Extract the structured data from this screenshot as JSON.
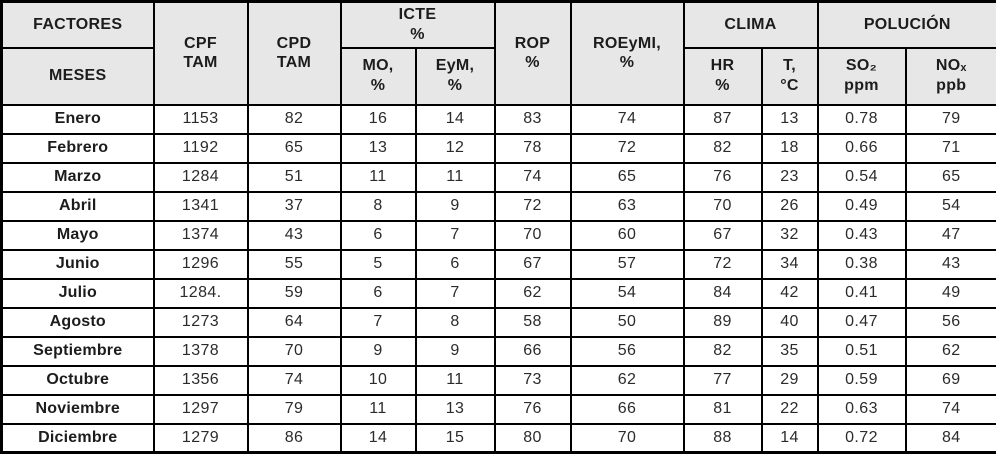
{
  "table": {
    "header": {
      "factores_label": "FACTORES",
      "meses_label": "MESES",
      "cpf_tam": "CPF\nTAM",
      "cpd_tam": "CPD\nTAM",
      "icte_group": "ICTE\n%",
      "icte_mo": "MO,\n%",
      "icte_eym": "EyM,\n%",
      "rop": "ROP\n%",
      "roeymi": "ROEyMI,\n%",
      "clima_group": "CLIMA",
      "clima_hr": "HR\n%",
      "clima_t": "T,\n°C",
      "polucion_group": "POLUCIÓN",
      "so2": "SO₂\nppm",
      "nox": "NOₓ\nppb"
    },
    "row_keys": [
      "mes",
      "cpf_tam",
      "cpd_tam",
      "icte_mo",
      "icte_eym",
      "rop",
      "roeymi",
      "clima_hr",
      "clima_t",
      "so2",
      "nox"
    ],
    "rows": [
      {
        "mes": "Enero",
        "cpf_tam": "1153",
        "cpd_tam": "82",
        "icte_mo": "16",
        "icte_eym": "14",
        "rop": "83",
        "roeymi": "74",
        "clima_hr": "87",
        "clima_t": "13",
        "so2": "0.78",
        "nox": "79"
      },
      {
        "mes": "Febrero",
        "cpf_tam": "1192",
        "cpd_tam": "65",
        "icte_mo": "13",
        "icte_eym": "12",
        "rop": "78",
        "roeymi": "72",
        "clima_hr": "82",
        "clima_t": "18",
        "so2": "0.66",
        "nox": "71"
      },
      {
        "mes": "Marzo",
        "cpf_tam": "1284",
        "cpd_tam": "51",
        "icte_mo": "11",
        "icte_eym": "11",
        "rop": "74",
        "roeymi": "65",
        "clima_hr": "76",
        "clima_t": "23",
        "so2": "0.54",
        "nox": "65"
      },
      {
        "mes": "Abril",
        "cpf_tam": "1341",
        "cpd_tam": "37",
        "icte_mo": "8",
        "icte_eym": "9",
        "rop": "72",
        "roeymi": "63",
        "clima_hr": "70",
        "clima_t": "26",
        "so2": "0.49",
        "nox": "54"
      },
      {
        "mes": "Mayo",
        "cpf_tam": "1374",
        "cpd_tam": "43",
        "icte_mo": "6",
        "icte_eym": "7",
        "rop": "70",
        "roeymi": "60",
        "clima_hr": "67",
        "clima_t": "32",
        "so2": "0.43",
        "nox": "47"
      },
      {
        "mes": "Junio",
        "cpf_tam": "1296",
        "cpd_tam": "55",
        "icte_mo": "5",
        "icte_eym": "6",
        "rop": "67",
        "roeymi": "57",
        "clima_hr": "72",
        "clima_t": "34",
        "so2": "0.38",
        "nox": "43"
      },
      {
        "mes": "Julio",
        "cpf_tam": "1284.",
        "cpd_tam": "59",
        "icte_mo": "6",
        "icte_eym": "7",
        "rop": "62",
        "roeymi": "54",
        "clima_hr": "84",
        "clima_t": "42",
        "so2": "0.41",
        "nox": "49"
      },
      {
        "mes": "Agosto",
        "cpf_tam": "1273",
        "cpd_tam": "64",
        "icte_mo": "7",
        "icte_eym": "8",
        "rop": "58",
        "roeymi": "50",
        "clima_hr": "89",
        "clima_t": "40",
        "so2": "0.47",
        "nox": "56"
      },
      {
        "mes": "Septiembre",
        "cpf_tam": "1378",
        "cpd_tam": "70",
        "icte_mo": "9",
        "icte_eym": "9",
        "rop": "66",
        "roeymi": "56",
        "clima_hr": "82",
        "clima_t": "35",
        "so2": "0.51",
        "nox": "62"
      },
      {
        "mes": "Octubre",
        "cpf_tam": "1356",
        "cpd_tam": "74",
        "icte_mo": "10",
        "icte_eym": "11",
        "rop": "73",
        "roeymi": "62",
        "clima_hr": "77",
        "clima_t": "29",
        "so2": "0.59",
        "nox": "69"
      },
      {
        "mes": "Noviembre",
        "cpf_tam": "1297",
        "cpd_tam": "79",
        "icte_mo": "11",
        "icte_eym": "13",
        "rop": "76",
        "roeymi": "66",
        "clima_hr": "81",
        "clima_t": "22",
        "so2": "0.63",
        "nox": "74"
      },
      {
        "mes": "Diciembre",
        "cpf_tam": "1279",
        "cpd_tam": "86",
        "icte_mo": "14",
        "icte_eym": "15",
        "rop": "80",
        "roeymi": "70",
        "clima_hr": "88",
        "clima_t": "14",
        "so2": "0.72",
        "nox": "84"
      }
    ]
  },
  "colors": {
    "header_bg": "#e7e7e7",
    "border": "#000000",
    "header_text": "#1c1c1c",
    "data_text": "#2b2b2b",
    "row_bg": "#ffffff"
  }
}
